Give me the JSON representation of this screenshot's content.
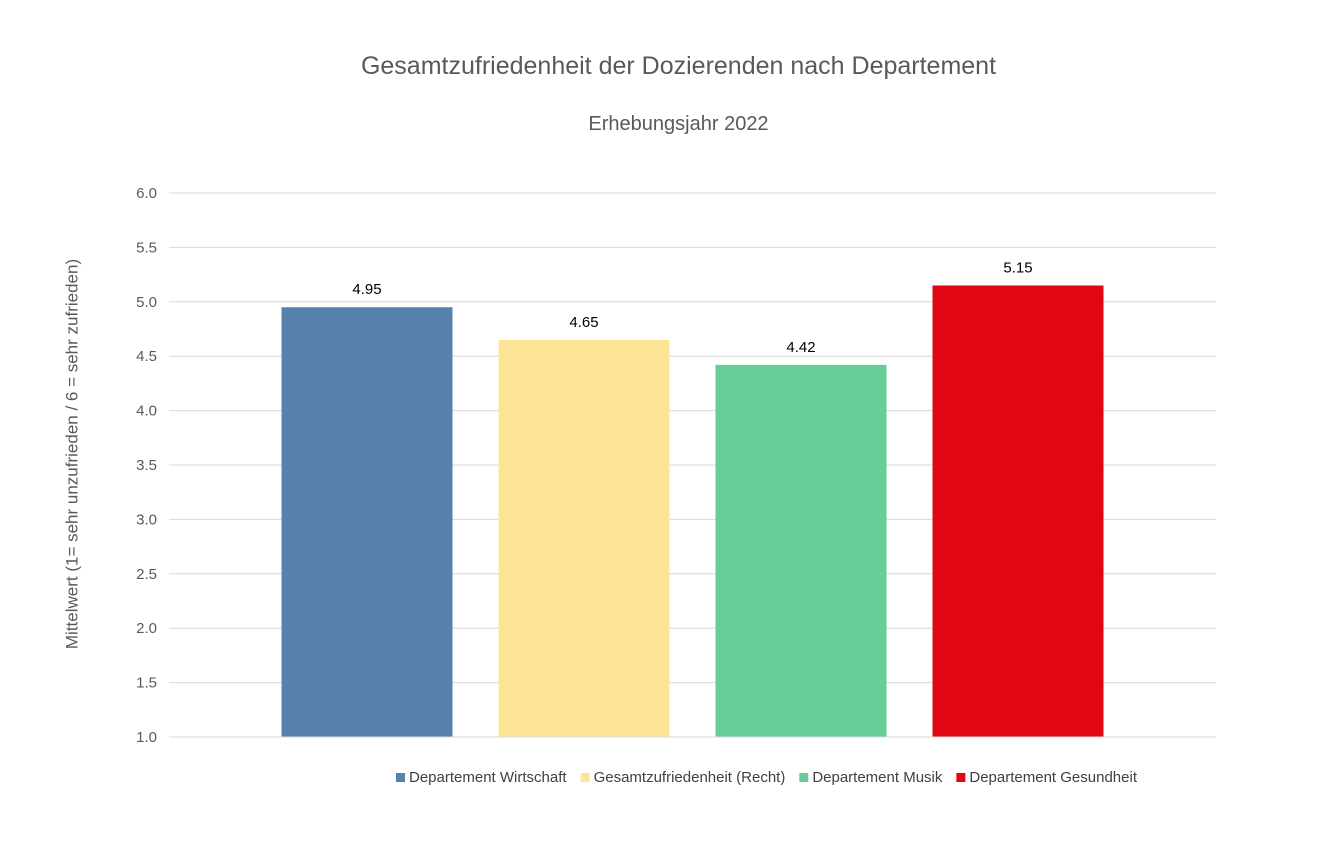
{
  "chart_data": {
    "type": "bar",
    "title": "Gesamtzufriedenheit der Dozierenden nach Departement",
    "subtitle": "Erhebungsjahr 2022",
    "ylabel": "Mittelwert (1= sehr unzufrieden / 6 = sehr zufrieden)",
    "xlabel": "",
    "ylim": [
      1.0,
      6.0
    ],
    "yticks": [
      "1.0",
      "1.5",
      "2.0",
      "2.5",
      "3.0",
      "3.5",
      "4.0",
      "4.5",
      "5.0",
      "5.5",
      "6.0"
    ],
    "grid": true,
    "legend_position": "bottom",
    "series": [
      {
        "name": "Departement Wirtschaft",
        "value": 4.95,
        "label": "4.95",
        "color": "#5882ad"
      },
      {
        "name": "Gesamtzufriedenheit (Recht)",
        "value": 4.65,
        "label": "4.65",
        "color": "#fce596"
      },
      {
        "name": "Departement Musik",
        "value": 4.42,
        "label": "4.42",
        "color": "#66cd99"
      },
      {
        "name": "Departement Gesundheit",
        "value": 5.15,
        "label": "5.15",
        "color": "#e10613"
      }
    ]
  }
}
